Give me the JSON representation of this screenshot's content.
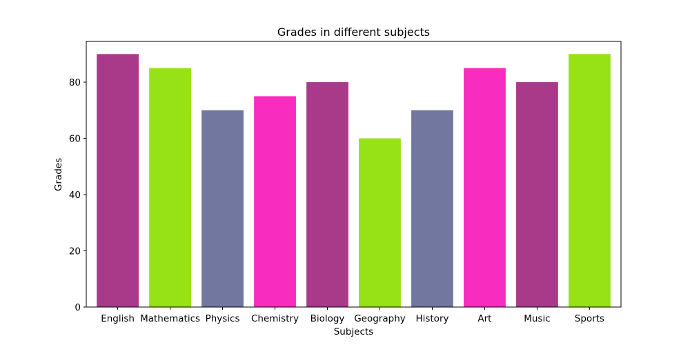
{
  "chart_data": {
    "type": "bar",
    "title": "Grades in different subjects",
    "xlabel": "Subjects",
    "ylabel": "Grades",
    "categories": [
      "English",
      "Mathematics",
      "Physics",
      "Chemistry",
      "Biology",
      "Geography",
      "History",
      "Art",
      "Music",
      "Sports"
    ],
    "values": [
      90,
      85,
      70,
      75,
      80,
      60,
      70,
      85,
      80,
      90
    ],
    "bar_colors": [
      "#a93a8a",
      "#96e217",
      "#71779f",
      "#f82cbf",
      "#a93a8a",
      "#96e217",
      "#71779f",
      "#f82cbf",
      "#a93a8a",
      "#96e217"
    ],
    "ylim": [
      0,
      94.5
    ],
    "yticks": [
      0,
      20,
      40,
      60,
      80
    ],
    "grid": false,
    "legend": "none"
  }
}
